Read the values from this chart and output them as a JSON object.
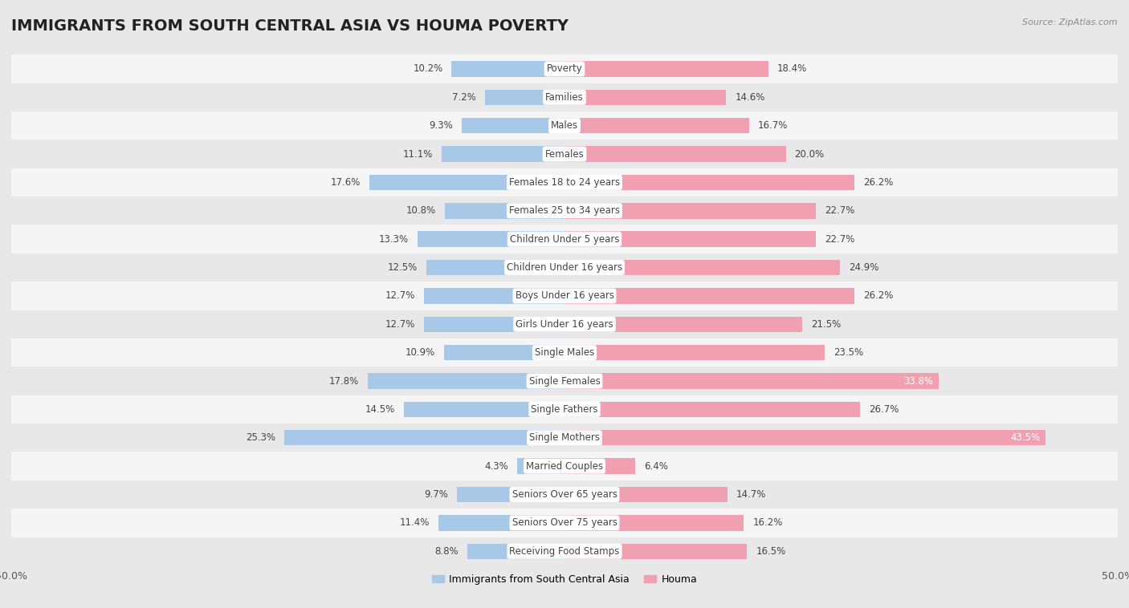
{
  "title": "IMMIGRANTS FROM SOUTH CENTRAL ASIA VS HOUMA POVERTY",
  "source": "Source: ZipAtlas.com",
  "categories": [
    "Poverty",
    "Families",
    "Males",
    "Females",
    "Females 18 to 24 years",
    "Females 25 to 34 years",
    "Children Under 5 years",
    "Children Under 16 years",
    "Boys Under 16 years",
    "Girls Under 16 years",
    "Single Males",
    "Single Females",
    "Single Fathers",
    "Single Mothers",
    "Married Couples",
    "Seniors Over 65 years",
    "Seniors Over 75 years",
    "Receiving Food Stamps"
  ],
  "left_values": [
    10.2,
    7.2,
    9.3,
    11.1,
    17.6,
    10.8,
    13.3,
    12.5,
    12.7,
    12.7,
    10.9,
    17.8,
    14.5,
    25.3,
    4.3,
    9.7,
    11.4,
    8.8
  ],
  "right_values": [
    18.4,
    14.6,
    16.7,
    20.0,
    26.2,
    22.7,
    22.7,
    24.9,
    26.2,
    21.5,
    23.5,
    33.8,
    26.7,
    43.5,
    6.4,
    14.7,
    16.2,
    16.5
  ],
  "left_color": "#a8c8e8",
  "right_color": "#f0a0b0",
  "axis_max": 50.0,
  "page_background": "#e8e8e8",
  "row_bg_odd": "#f5f5f5",
  "row_bg_even": "#e8e8e8",
  "legend_left": "Immigrants from South Central Asia",
  "legend_right": "Houma",
  "title_fontsize": 14,
  "label_fontsize": 8.5,
  "value_fontsize": 8.5,
  "center_label_bg": "#ffffff"
}
